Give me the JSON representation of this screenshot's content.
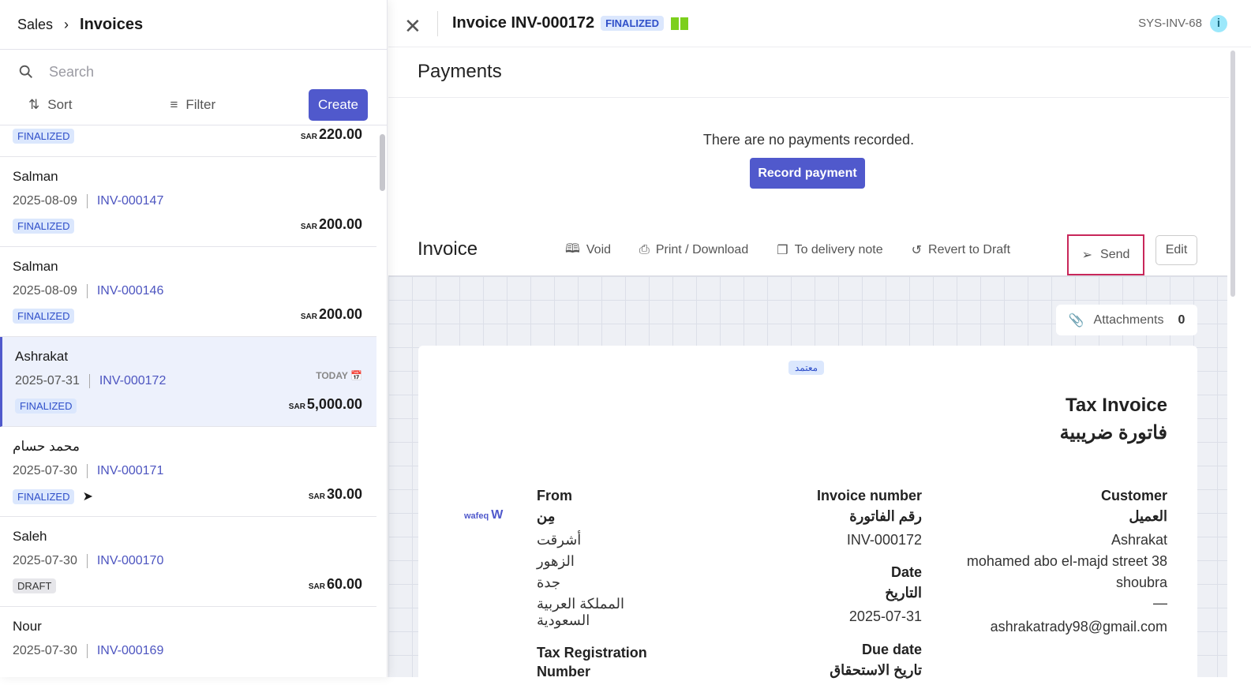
{
  "breadcrumb": {
    "parent": "Sales",
    "current": "Invoices"
  },
  "search": {
    "placeholder": "Search"
  },
  "toolbar": {
    "sort": "Sort",
    "filter": "Filter",
    "create": "Create"
  },
  "invoices": [
    {
      "name": "",
      "date": "",
      "number": "",
      "status": "FINALIZED",
      "currency": "SAR",
      "amount": "220.00"
    },
    {
      "name": "Salman",
      "date": "2025-08-09",
      "number": "INV-000147",
      "status": "FINALIZED",
      "currency": "SAR",
      "amount": "200.00"
    },
    {
      "name": "Salman",
      "date": "2025-08-09",
      "number": "INV-000146",
      "status": "FINALIZED",
      "currency": "SAR",
      "amount": "200.00"
    },
    {
      "name": "Ashrakat",
      "date": "2025-07-31",
      "number": "INV-000172",
      "status": "FINALIZED",
      "currency": "SAR",
      "amount": "5,000.00",
      "tag": "TODAY",
      "selected": true
    },
    {
      "name": "محمد حسام",
      "date": "2025-07-30",
      "number": "INV-000171",
      "status": "FINALIZED",
      "currency": "SAR",
      "amount": "30.00",
      "sent": true
    },
    {
      "name": "Saleh",
      "date": "2025-07-30",
      "number": "INV-000170",
      "status": "DRAFT",
      "currency": "SAR",
      "amount": "60.00"
    },
    {
      "name": "Nour",
      "date": "2025-07-30",
      "number": "INV-000169",
      "status": "",
      "currency": "",
      "amount": ""
    }
  ],
  "detail": {
    "title": "Invoice INV-000172",
    "status": "FINALIZED",
    "system_id": "SYS-INV-68",
    "payments": {
      "title": "Payments",
      "empty": "There are no payments recorded.",
      "record": "Record payment"
    },
    "invoice_section": {
      "title": "Invoice",
      "void": "Void",
      "print": "Print / Download",
      "delivery": "To delivery note",
      "revert": "Revert to Draft",
      "send": "Send",
      "edit": "Edit",
      "attachments": "Attachments",
      "attachments_count": "0"
    },
    "document": {
      "stamp": "معتمد",
      "title_en": "Tax Invoice",
      "title_ar": "فاتورة ضريبية",
      "logo": "wafeq واfق",
      "from_label": "From",
      "from_label_ar": "مِن",
      "from_lines": [
        "أشرقت",
        "الزهور",
        "جدة",
        "المملكة العربية السعودية"
      ],
      "tax_reg_label": "Tax Registration",
      "tax_reg_label2": "Number",
      "invoice_number_label": "Invoice number",
      "invoice_number_label_ar": "رقم الفاتورة",
      "invoice_number": "INV-000172",
      "date_label": "Date",
      "date_label_ar": "التاريخ",
      "date": "2025-07-31",
      "due_label": "Due date",
      "due_label_ar": "تاريخ الاستحقاق",
      "customer_label": "Customer",
      "customer_label_ar": "العميل",
      "customer_name": "Ashrakat",
      "customer_street": "mohamed abo el-majd street 38",
      "customer_city": "shoubra",
      "customer_dash": "—",
      "customer_email": "ashrakatrady98@gmail.com"
    }
  },
  "colors": {
    "accent": "#5059cc",
    "badge_bg": "#dbe7fd",
    "highlight": "#c8275a"
  }
}
